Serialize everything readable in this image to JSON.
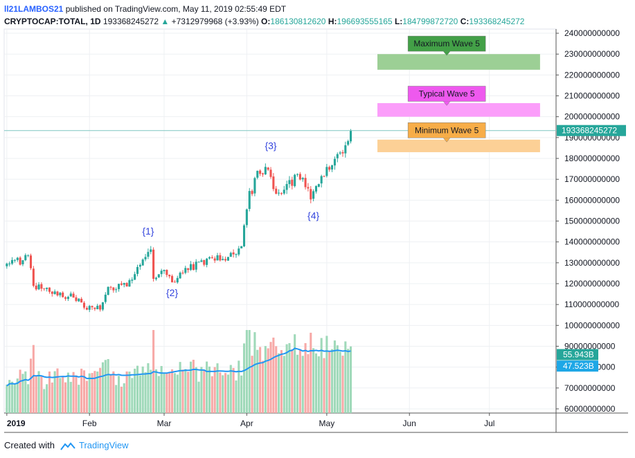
{
  "header": {
    "author": "ll21LAMBOS21",
    "published": "published on TradingView.com, May 11, 2019 02:55:49 EDT",
    "symbol": "CRYPTOCAP:TOTAL, 1D",
    "last": "193368245272",
    "arrow": "▲",
    "change": "+7312979968 (+3.93%)",
    "o_label": "O:",
    "o": "186130812620",
    "h_label": "H:",
    "h": "196693555165",
    "l_label": "L:",
    "l": "184799872720",
    "c_label": "C:",
    "c": "193368245272"
  },
  "footer": {
    "created": "Created with",
    "brand": "TradingView"
  },
  "colors": {
    "up": "#26a69a",
    "down": "#ef5350",
    "vol_up": "#9fd9b9",
    "vol_down": "#f7a9a7",
    "ma": "#2196f3",
    "grid": "#eef0f3"
  },
  "chart_data": {
    "type": "candlestick",
    "y_axis": {
      "min": 58000000000,
      "max": 242000000000,
      "ticks": [
        60000000000,
        70000000000,
        80000000000,
        90000000000,
        100000000000,
        110000000000,
        120000000000,
        130000000000,
        140000000000,
        150000000000,
        160000000000,
        170000000000,
        180000000000,
        190000000000,
        200000000000,
        210000000000,
        220000000000,
        230000000000,
        240000000000
      ],
      "tick_labels": [
        "60000000000",
        "70000000000",
        "80000000000",
        "90000000000",
        "100000000000",
        "110000000000",
        "120000000000",
        "130000000000",
        "140000000000",
        "150000000000",
        "160000000000",
        "170000000000",
        "180000000000",
        "190000000000",
        "200000000000",
        "210000000000",
        "220000000000",
        "230000000000",
        "240000000000"
      ]
    },
    "x_axis": {
      "start": "2018-12-31",
      "end": "2019-07-26",
      "ticks": [
        {
          "date": "2019-01-01",
          "label": "2019",
          "bold": true
        },
        {
          "date": "2019-02-01",
          "label": "Feb"
        },
        {
          "date": "2019-03-01",
          "label": "Mar"
        },
        {
          "date": "2019-04-01",
          "label": "Apr"
        },
        {
          "date": "2019-05-01",
          "label": "May"
        },
        {
          "date": "2019-06-01",
          "label": "Jun"
        },
        {
          "date": "2019-07-01",
          "label": "Jul"
        }
      ]
    },
    "last_price": 193368245272,
    "last_price_label": "193368245272",
    "volume_labels": [
      {
        "value": "55.943B",
        "color": "#26a69a",
        "price_level": 86000000000
      },
      {
        "value": "47.523B",
        "color": "#1ea7e6",
        "price_level": 80500000000
      }
    ],
    "closes": [
      {
        "date": "2019-01-01",
        "close": 130000000000
      },
      {
        "date": "2019-01-06",
        "close": 131000000000
      },
      {
        "date": "2019-01-09",
        "close": 134000000000
      },
      {
        "date": "2019-01-11",
        "close": 119000000000
      },
      {
        "date": "2019-01-15",
        "close": 117000000000
      },
      {
        "date": "2019-01-20",
        "close": 115000000000
      },
      {
        "date": "2019-01-27",
        "close": 113000000000
      },
      {
        "date": "2019-01-31",
        "close": 109000000000
      },
      {
        "date": "2019-02-05",
        "close": 108000000000
      },
      {
        "date": "2019-02-08",
        "close": 118000000000
      },
      {
        "date": "2019-02-12",
        "close": 119000000000
      },
      {
        "date": "2019-02-17",
        "close": 121000000000
      },
      {
        "date": "2019-02-19",
        "close": 129000000000
      },
      {
        "date": "2019-02-24",
        "close": 135000000000
      },
      {
        "date": "2019-02-25",
        "close": 124000000000
      },
      {
        "date": "2019-03-01",
        "close": 125000000000
      },
      {
        "date": "2019-03-04",
        "close": 121000000000
      },
      {
        "date": "2019-03-10",
        "close": 127000000000
      },
      {
        "date": "2019-03-15",
        "close": 130000000000
      },
      {
        "date": "2019-03-20",
        "close": 133000000000
      },
      {
        "date": "2019-03-25",
        "close": 132000000000
      },
      {
        "date": "2019-03-30",
        "close": 138000000000
      },
      {
        "date": "2019-04-02",
        "close": 162000000000
      },
      {
        "date": "2019-04-05",
        "close": 172000000000
      },
      {
        "date": "2019-04-08",
        "close": 176000000000
      },
      {
        "date": "2019-04-12",
        "close": 164000000000
      },
      {
        "date": "2019-04-17",
        "close": 168000000000
      },
      {
        "date": "2019-04-21",
        "close": 172000000000
      },
      {
        "date": "2019-04-25",
        "close": 162000000000
      },
      {
        "date": "2019-04-29",
        "close": 170000000000
      },
      {
        "date": "2019-05-03",
        "close": 178000000000
      },
      {
        "date": "2019-05-08",
        "close": 186000000000
      },
      {
        "date": "2019-05-10",
        "close": 193368245272
      }
    ],
    "zones": [
      {
        "label": "Maximum Wave 5",
        "low": 222500000000,
        "high": 230000000000,
        "fill": "#9ccf95",
        "label_bg": "#43a047",
        "label_color": "#131722",
        "label_price": 235000000000
      },
      {
        "label": "Typical Wave 5",
        "low": 200000000000,
        "high": 206500000000,
        "fill": "#fb9dfa",
        "label_bg": "#ee59ee",
        "label_color": "#131722",
        "label_price": 211000000000
      },
      {
        "label": "Minimum Wave 5",
        "low": 183000000000,
        "high": 189000000000,
        "fill": "#fcd096",
        "label_bg": "#f7ad48",
        "label_color": "#131722",
        "label_price": 193500000000
      }
    ],
    "wave_labels": [
      {
        "text": "{1}",
        "date": "2019-02-23",
        "price": 143500000000
      },
      {
        "text": "{2}",
        "date": "2019-03-04",
        "price": 114000000000
      },
      {
        "text": "{3}",
        "date": "2019-04-10",
        "price": 184500000000
      },
      {
        "text": "{4}",
        "date": "2019-04-26",
        "price": 151000000000
      }
    ]
  }
}
